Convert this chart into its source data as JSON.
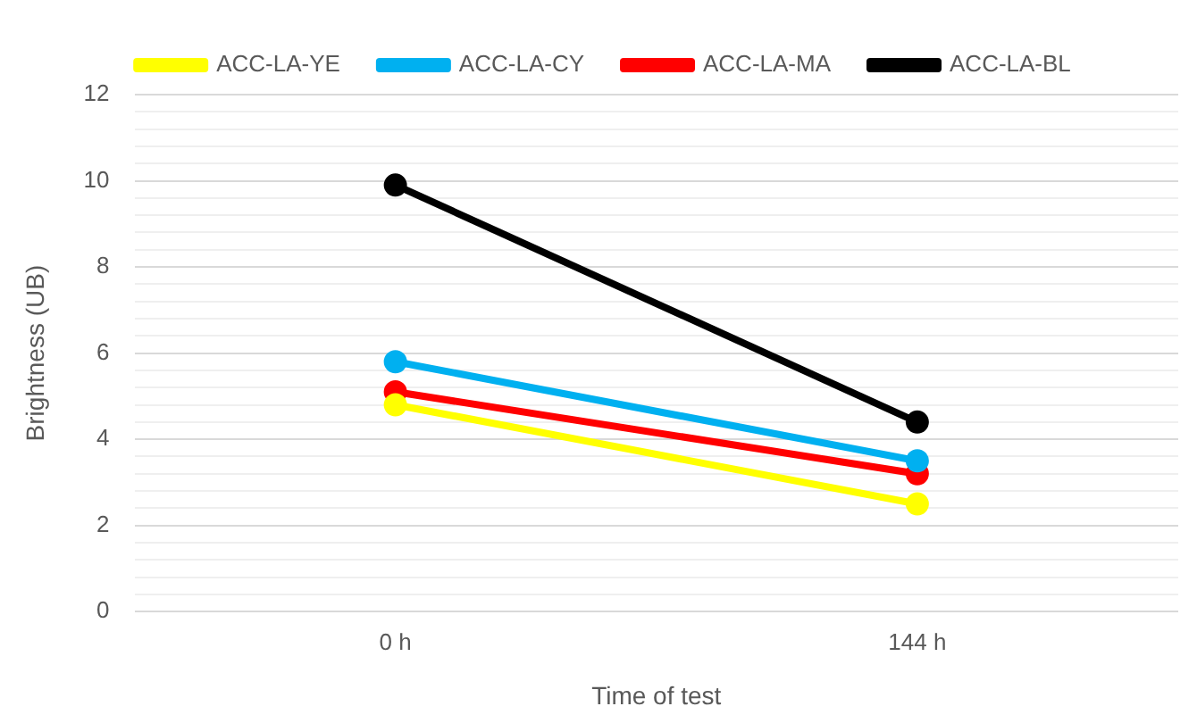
{
  "chart_data": {
    "type": "line",
    "xlabel": "Time of test",
    "ylabel": "Brightness (UB)",
    "categories": [
      "0 h",
      "144 h"
    ],
    "series": [
      {
        "name": "ACC-LA-YE",
        "color": "#ffff00",
        "values": [
          4.8,
          2.5
        ]
      },
      {
        "name": "ACC-LA-CY",
        "color": "#00b0f0",
        "values": [
          5.8,
          3.5
        ]
      },
      {
        "name": "ACC-LA-MA",
        "color": "#ff0000",
        "values": [
          5.1,
          3.2
        ]
      },
      {
        "name": "ACC-LA-BL",
        "color": "#000000",
        "values": [
          9.9,
          4.4
        ]
      }
    ],
    "ylim": [
      0,
      12
    ],
    "yticks": [
      0,
      {
        "value": 0.4,
        "label": null
      },
      {
        "value": 0.8,
        "label": null
      },
      {
        "value": 1.2,
        "label": null
      },
      {
        "value": 1.6,
        "label": null
      },
      2,
      {
        "value": 2.4,
        "label": null
      },
      {
        "value": 2.8,
        "label": null
      },
      {
        "value": 3.2,
        "label": null
      },
      {
        "value": 3.6,
        "label": null
      },
      4,
      {
        "value": 4.4,
        "label": null
      },
      {
        "value": 4.8,
        "label": null
      },
      {
        "value": 5.2,
        "label": null
      },
      {
        "value": 5.6,
        "label": null
      },
      6,
      {
        "value": 6.4,
        "label": null
      },
      {
        "value": 6.8,
        "label": null
      },
      {
        "value": 7.2,
        "label": null
      },
      {
        "value": 7.6,
        "label": null
      },
      8,
      {
        "value": 8.4,
        "label": null
      },
      {
        "value": 8.8,
        "label": null
      },
      {
        "value": 9.2,
        "label": null
      },
      {
        "value": 9.6,
        "label": null
      },
      10,
      {
        "value": 10.4,
        "label": null
      },
      {
        "value": 10.8,
        "label": null
      },
      {
        "value": 11.2,
        "label": null
      },
      {
        "value": 11.6,
        "label": null
      },
      12
    ],
    "grid": "y",
    "legend": "top",
    "marker": "circle",
    "line_style": "solid"
  }
}
